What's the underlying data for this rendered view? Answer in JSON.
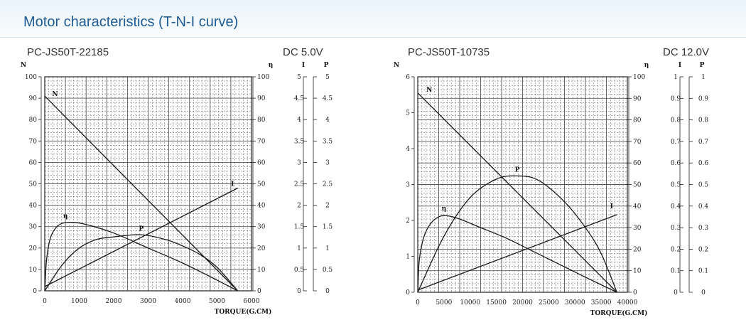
{
  "page": {
    "title": "Motor characteristics (T-N-I curve)"
  },
  "charts": [
    {
      "model": "PC-JS50T-22185",
      "voltage": "DC 5.0V"
    },
    {
      "model": "PC-JS50T-10735",
      "voltage": "DC 12.0V"
    }
  ],
  "chart_data": [
    {
      "type": "line",
      "title": "PC-JS50T-22185",
      "subtitle": "DC 5.0V",
      "xlabel": "TORQUE(G.CM)",
      "x_range": [
        0,
        6000
      ],
      "x_ticks": [
        0,
        1000,
        2000,
        3000,
        4000,
        5000,
        6000
      ],
      "axes": {
        "N": {
          "label": "N",
          "range": [
            0,
            100
          ],
          "ticks": [
            "0",
            "10",
            "20",
            "30",
            "40",
            "50",
            "60",
            "70",
            "80",
            "90",
            "100"
          ]
        },
        "eta": {
          "label": "η",
          "range": [
            0,
            100
          ],
          "ticks": [
            "0",
            "10",
            "20",
            "30",
            "40",
            "50",
            "60",
            "70",
            "80",
            "90",
            "100"
          ]
        },
        "I": {
          "label": "I",
          "range": [
            0,
            5
          ],
          "ticks": [
            "0",
            "0.5",
            "1",
            "1.5",
            "2",
            "2.5",
            "3",
            "3.5",
            "4",
            "4.5",
            "5"
          ]
        },
        "P": {
          "label": "P",
          "range": [
            0,
            5
          ],
          "ticks": [
            "0",
            "0.5",
            "1",
            "1.5",
            "2",
            "2.5",
            "3",
            "3.5",
            "4",
            "4.5",
            "5"
          ]
        }
      },
      "grid": true,
      "series": [
        {
          "name": "N",
          "axis": "N",
          "points": [
            [
              0,
              91
            ],
            [
              5600,
              0
            ]
          ]
        },
        {
          "name": "I",
          "axis": "I",
          "points": [
            [
              0,
              0.1
            ],
            [
              5600,
              2.4
            ]
          ]
        },
        {
          "name": "P",
          "axis": "P",
          "points": [
            [
              0,
              0
            ],
            [
              500,
              0.6
            ],
            [
              1000,
              1.0
            ],
            [
              1500,
              1.2
            ],
            [
              2000,
              1.26
            ],
            [
              2800,
              1.31
            ],
            [
              3500,
              1.2
            ],
            [
              4000,
              1.05
            ],
            [
              4500,
              0.85
            ],
            [
              5000,
              0.55
            ],
            [
              5600,
              0
            ]
          ]
        },
        {
          "name": "η",
          "axis": "eta",
          "points": [
            [
              0,
              0
            ],
            [
              50,
              14
            ],
            [
              150,
              24
            ],
            [
              300,
              29
            ],
            [
              500,
              31.5
            ],
            [
              800,
              32
            ],
            [
              1200,
              31
            ],
            [
              2000,
              27
            ],
            [
              3000,
              20
            ],
            [
              4000,
              13
            ],
            [
              5000,
              5
            ],
            [
              5600,
              0
            ]
          ]
        }
      ],
      "curve_labels": [
        {
          "text": "N",
          "x": 300,
          "y_pct": 91
        },
        {
          "text": "η",
          "x": 600,
          "y_pct": 34
        },
        {
          "text": "P",
          "x": 2800,
          "y_pct": 28
        },
        {
          "text": "I",
          "x": 5450,
          "y_pct": 49
        }
      ]
    },
    {
      "type": "line",
      "title": "PC-JS50T-10735",
      "subtitle": "DC 12.0V",
      "xlabel": "TORQUE(G.CM)",
      "x_range": [
        0,
        40000
      ],
      "x_ticks": [
        0,
        5000,
        10000,
        15000,
        20000,
        25000,
        30000,
        35000,
        40000
      ],
      "axes": {
        "N": {
          "label": "N",
          "range": [
            0,
            6
          ],
          "ticks": [
            "0",
            "1",
            "2",
            "3",
            "4",
            "5",
            "6"
          ]
        },
        "eta": {
          "label": "η",
          "range": [
            0,
            100
          ],
          "ticks": [
            "0",
            "10",
            "20",
            "30",
            "40",
            "50",
            "60",
            "70",
            "80",
            "90",
            "100"
          ]
        },
        "I": {
          "label": "I",
          "range": [
            0,
            1
          ],
          "ticks": [
            "0",
            "0.1",
            "0.2",
            "0.3",
            "0.4",
            "0.5",
            "0.6",
            "0.7",
            "0.8",
            "0.9",
            "1"
          ]
        },
        "P": {
          "label": "P",
          "range": [
            0,
            1
          ],
          "ticks": [
            "0",
            "0.1",
            "0.2",
            "0.3",
            "0.4",
            "0.5",
            "0.6",
            "0.7",
            "0.8",
            "0.9",
            "1"
          ]
        }
      },
      "grid": true,
      "series": [
        {
          "name": "N",
          "axis": "N",
          "points": [
            [
              0,
              5.55
            ],
            [
              38000,
              0
            ]
          ]
        },
        {
          "name": "I",
          "axis": "I",
          "points": [
            [
              0,
              0.01
            ],
            [
              38000,
              0.36
            ]
          ]
        },
        {
          "name": "P",
          "axis": "P",
          "points": [
            [
              0,
              0
            ],
            [
              5000,
              0.26
            ],
            [
              10000,
              0.44
            ],
            [
              15000,
              0.525
            ],
            [
              19000,
              0.54
            ],
            [
              23000,
              0.52
            ],
            [
              28000,
              0.42
            ],
            [
              32000,
              0.3
            ],
            [
              35000,
              0.18
            ],
            [
              38000,
              0
            ]
          ]
        },
        {
          "name": "η",
          "axis": "eta",
          "points": [
            [
              0,
              0
            ],
            [
              300,
              15
            ],
            [
              1200,
              26
            ],
            [
              2500,
              32
            ],
            [
              4000,
              35
            ],
            [
              5500,
              35.5
            ],
            [
              8000,
              34
            ],
            [
              12000,
              30
            ],
            [
              17000,
              25
            ],
            [
              22000,
              19
            ],
            [
              27000,
              13
            ],
            [
              32000,
              7
            ],
            [
              38000,
              0
            ]
          ]
        }
      ],
      "curve_labels": [
        {
          "text": "N",
          "x": 2200,
          "y_pct": 93
        },
        {
          "text": "η",
          "x": 5000,
          "y_pct": 38
        },
        {
          "text": "P",
          "x": 19000,
          "y_pct": 56
        },
        {
          "text": "I",
          "x": 37000,
          "y_pct": 39
        }
      ]
    }
  ]
}
